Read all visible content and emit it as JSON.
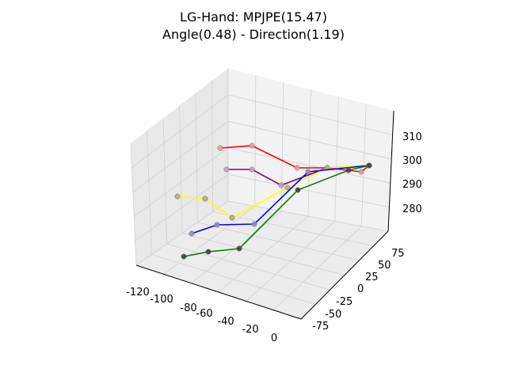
{
  "chart_data": {
    "type": "line3d",
    "title_lines": [
      "LG-Hand: MPJPE(15.47)",
      "Angle(0.48) - Direction(1.19)"
    ],
    "axes": {
      "x": {
        "ticks": [
          "-120",
          "-100",
          "-80",
          "-60",
          "-40",
          "-20",
          "0"
        ]
      },
      "y": {
        "ticks": [
          "75",
          "50",
          "25",
          "0",
          "-25",
          "-50",
          "-75"
        ]
      },
      "z": {
        "ticks": [
          "310",
          "300",
          "290",
          "280"
        ]
      }
    },
    "grid": true,
    "legend": "none",
    "series": [
      {
        "color": "#ff0000"
      },
      {
        "color": "#800080"
      },
      {
        "color": "#ffff00"
      },
      {
        "color": "#0000ff"
      },
      {
        "color": "#008000"
      }
    ]
  }
}
